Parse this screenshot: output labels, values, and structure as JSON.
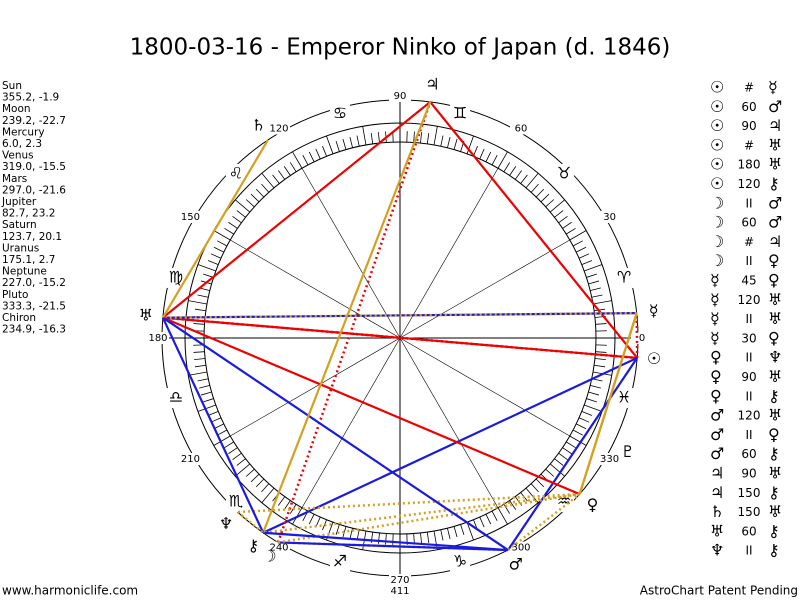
{
  "title": "1800-03-16 - Emperor Ninko of Japan (d. 1846)",
  "planets": [
    {
      "name": "Sun",
      "glyph": "☉",
      "position": "355.2, -1.9"
    },
    {
      "name": "Moon",
      "glyph": "☽",
      "position": "239.2, -22.7"
    },
    {
      "name": "Mercury",
      "glyph": "☿",
      "position": "6.0, 2.3"
    },
    {
      "name": "Venus",
      "glyph": "♀",
      "position": "319.0, -15.5"
    },
    {
      "name": "Mars",
      "glyph": "♂",
      "position": "297.0, -21.6"
    },
    {
      "name": "Jupiter",
      "glyph": "♃",
      "position": "82.7, 23.2"
    },
    {
      "name": "Saturn",
      "glyph": "♄",
      "position": "123.7, 20.1"
    },
    {
      "name": "Uranus",
      "glyph": "♅",
      "position": "175.1, 2.7"
    },
    {
      "name": "Neptune",
      "glyph": "♆",
      "position": "227.0, -15.2"
    },
    {
      "name": "Pluto",
      "glyph": "♇",
      "position": "333.3, -21.5"
    },
    {
      "name": "Chiron",
      "glyph": "⚷",
      "position": "234.9, -16.3"
    }
  ],
  "signs": [
    "♈",
    "♉",
    "♊",
    "♋",
    "♌",
    "♍",
    "♎",
    "♏",
    "♐",
    "♑",
    "♒",
    "♓"
  ],
  "degree_labels": [
    0,
    30,
    60,
    90,
    120,
    150,
    180,
    210,
    240,
    270,
    300,
    330
  ],
  "bottom_label": "411",
  "aspects": [
    {
      "p1": "☉",
      "type": "#",
      "p2": "☿"
    },
    {
      "p1": "☉",
      "type": "60",
      "p2": "♂"
    },
    {
      "p1": "☉",
      "type": "90",
      "p2": "♃"
    },
    {
      "p1": "☉",
      "type": "#",
      "p2": "♅"
    },
    {
      "p1": "☉",
      "type": "180",
      "p2": "♅"
    },
    {
      "p1": "☉",
      "type": "120",
      "p2": "⚷"
    },
    {
      "p1": "☽",
      "type": "II",
      "p2": "♂"
    },
    {
      "p1": "☽",
      "type": "60",
      "p2": "♂"
    },
    {
      "p1": "☽",
      "type": "#",
      "p2": "♃"
    },
    {
      "p1": "☽",
      "type": "II",
      "p2": "♀"
    },
    {
      "p1": "☿",
      "type": "45",
      "p2": "♀"
    },
    {
      "p1": "☿",
      "type": "120",
      "p2": "♅"
    },
    {
      "p1": "☿",
      "type": "II",
      "p2": "♅"
    },
    {
      "p1": "☿",
      "type": "30",
      "p2": "♀"
    },
    {
      "p1": "♀",
      "type": "II",
      "p2": "♆"
    },
    {
      "p1": "♀",
      "type": "90",
      "p2": "♅"
    },
    {
      "p1": "♀",
      "type": "II",
      "p2": "⚷"
    },
    {
      "p1": "♂",
      "type": "120",
      "p2": "♅"
    },
    {
      "p1": "♂",
      "type": "II",
      "p2": "♀"
    },
    {
      "p1": "♂",
      "type": "60",
      "p2": "⚷"
    },
    {
      "p1": "♃",
      "type": "90",
      "p2": "♅"
    },
    {
      "p1": "♃",
      "type": "150",
      "p2": "⚷"
    },
    {
      "p1": "♄",
      "type": "150",
      "p2": "♅"
    },
    {
      "p1": "♅",
      "type": "60",
      "p2": "⚷"
    },
    {
      "p1": "♆",
      "type": "II",
      "p2": "⚷"
    }
  ],
  "footer": {
    "left": "www.harmoniclife.com",
    "right": "AstroChart Patent Pending"
  }
}
